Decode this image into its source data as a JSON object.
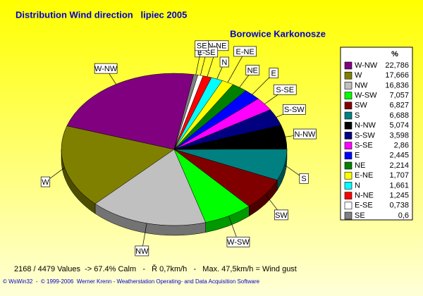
{
  "chart_data": {
    "type": "pie",
    "title": "Distribution Wind direction   lipiec 2005",
    "subtitle": "Borowice Karkonosze",
    "legend_title": "%",
    "categories": [
      "W-NW",
      "W",
      "NW",
      "W-SW",
      "SW",
      "S",
      "N-NW",
      "S-SW",
      "S-SE",
      "E",
      "NE",
      "E-NE",
      "N",
      "N-NE",
      "E-SE",
      "SE"
    ],
    "values": [
      22.786,
      17.666,
      16.836,
      7.057,
      6.827,
      6.688,
      5.074,
      3.598,
      2.86,
      2.445,
      2.214,
      1.707,
      1.661,
      1.245,
      0.738,
      0.6
    ],
    "value_labels": [
      "22,786",
      "17,666",
      "16,836",
      "7,057",
      "6,827",
      "6,688",
      "5,074",
      "3,598",
      "2,86",
      "2,445",
      "2,214",
      "1,707",
      "1,661",
      "1,245",
      "0,738",
      "0,6"
    ],
    "colors": [
      "#800080",
      "#808000",
      "#c0c0c0",
      "#00ff00",
      "#800000",
      "#008080",
      "#000000",
      "#000080",
      "#ff00ff",
      "#0000ff",
      "#008000",
      "#ffff00",
      "#00ffff",
      "#ff0000",
      "#ffffff",
      "#808080"
    ],
    "legend": "right",
    "footer": "2168 / 4479 Values  -> 67.4% Calm   -   Ř 0,7km/h   -   Max. 47,5km/h = Wind gust",
    "copyright": "© WsWin32  -  © 1999-2006  Werner Krenn - Weatherstation Operating- and Data Acquisition Software"
  }
}
